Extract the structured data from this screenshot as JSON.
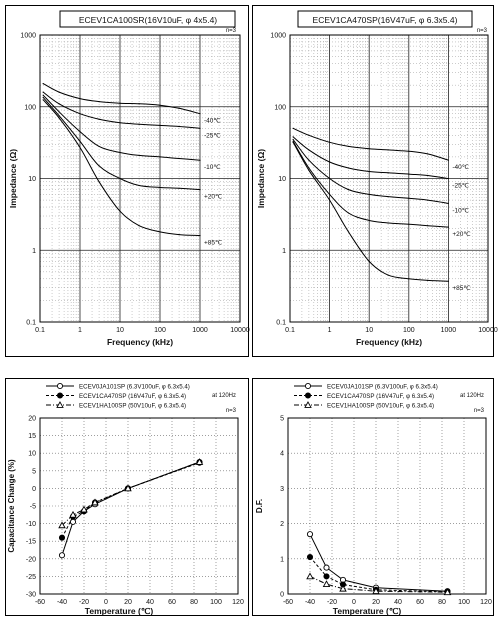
{
  "chart_data": [
    {
      "type": "line",
      "title": "ECEV1CA100SR(16V10uF, φ 4x5.4)",
      "annotation": "n=3",
      "xlabel": "Frequency (kHz)",
      "ylabel": "Impedance (Ω)",
      "xscale": "log",
      "yscale": "log",
      "xlim": [
        0.1,
        10000
      ],
      "ylim": [
        0.1,
        1000
      ],
      "xticks": [
        "0.1",
        "1",
        "10",
        "100",
        "1000",
        "10000"
      ],
      "yticks": [
        "0.1",
        "1",
        "10",
        "100",
        "1000"
      ],
      "grid": true,
      "x": [
        0.12,
        0.3,
        1,
        3,
        10,
        30,
        100,
        300,
        1000
      ],
      "series": [
        {
          "name": "-40℃",
          "values": [
            210,
            160,
            130,
            118,
            112,
            110,
            105,
            95,
            80
          ]
        },
        {
          "name": "-25℃",
          "values": [
            160,
            110,
            80,
            67,
            60,
            57,
            55,
            53,
            50
          ]
        },
        {
          "name": "-10℃",
          "values": [
            145,
            85,
            45,
            28,
            23,
            21,
            20,
            19,
            18
          ]
        },
        {
          "name": "+20℃",
          "values": [
            135,
            75,
            33,
            15,
            10,
            8,
            7.5,
            7.3,
            7
          ]
        },
        {
          "name": "+85℃",
          "values": [
            125,
            70,
            27,
            9,
            3.5,
            2.2,
            1.8,
            1.65,
            1.6
          ]
        }
      ]
    },
    {
      "type": "line",
      "title": "ECEV1CA470SP(16V47uF, φ 6.3x5.4)",
      "annotation": "n=3",
      "xlabel": "Frequency (kHz)",
      "ylabel": "Impedance (Ω)",
      "xscale": "log",
      "yscale": "log",
      "xlim": [
        0.1,
        10000
      ],
      "ylim": [
        0.1,
        1000
      ],
      "xticks": [
        "0.1",
        "1",
        "10",
        "100",
        "1000",
        "10000"
      ],
      "yticks": [
        "0.1",
        "1",
        "10",
        "100",
        "1000"
      ],
      "grid": true,
      "x": [
        0.12,
        0.3,
        1,
        3,
        10,
        30,
        100,
        300,
        1000
      ],
      "series": [
        {
          "name": "-40℃",
          "values": [
            50,
            40,
            32,
            28,
            26,
            25,
            24,
            22,
            18
          ]
        },
        {
          "name": "-25℃",
          "values": [
            38,
            25,
            17,
            14,
            12.5,
            12,
            11.5,
            11,
            10
          ]
        },
        {
          "name": "-10℃",
          "values": [
            35,
            18,
            10,
            7,
            6,
            5.6,
            5.3,
            5,
            4.5
          ]
        },
        {
          "name": "+20℃",
          "values": [
            33,
            14,
            6,
            3.3,
            2.6,
            2.4,
            2.3,
            2.2,
            2.1
          ]
        },
        {
          "name": "+85℃",
          "values": [
            32,
            13,
            5,
            1.8,
            0.7,
            0.45,
            0.4,
            0.38,
            0.37
          ]
        }
      ]
    },
    {
      "type": "line",
      "xlabel": "Temperature (℃)",
      "ylabel": "Capacitance Change (%)",
      "xlim": [
        -60,
        120
      ],
      "ylim": [
        -30,
        20
      ],
      "xticks": [
        -60,
        -40,
        -20,
        0,
        20,
        40,
        60,
        80,
        100,
        120
      ],
      "yticks": [
        -30,
        -25,
        -20,
        -15,
        -10,
        -5,
        0,
        5,
        10,
        15,
        20
      ],
      "grid": true,
      "annotations": [
        "at 120Hz",
        "n=3"
      ],
      "legend_placement": "top",
      "x": [
        -40,
        -30,
        -20,
        -10,
        20,
        85
      ],
      "series": [
        {
          "name": "ECEV0JA101SP (6.3V100uF, φ 6.3x5.4)",
          "marker": "open-circle",
          "line": "solid",
          "values": [
            -19,
            -9.5,
            -6.5,
            -4.5,
            0,
            7.5
          ]
        },
        {
          "name": "ECEV1CA470SP (16V47uF, φ 6.3x5.4)",
          "marker": "filled-circle",
          "line": "dashed",
          "values": [
            -14,
            -8,
            -6.5,
            -4,
            0,
            7.3
          ]
        },
        {
          "name": "ECEV1HA100SP (50V10uF, φ 6.3x5.4)",
          "marker": "open-triangle",
          "line": "dash-dot",
          "values": [
            -10.5,
            -7.5,
            -6,
            -4,
            0,
            7.5
          ]
        }
      ]
    },
    {
      "type": "line",
      "xlabel": "Temperature (℃)",
      "ylabel": "D.F.",
      "xlim": [
        -60,
        120
      ],
      "ylim": [
        0,
        5
      ],
      "xticks": [
        -60,
        -40,
        -20,
        0,
        20,
        40,
        60,
        80,
        100,
        120
      ],
      "yticks": [
        0,
        1,
        2,
        3,
        4,
        5
      ],
      "grid": true,
      "annotations": [
        "at 120Hz",
        "n=3"
      ],
      "legend_placement": "top",
      "x": [
        -40,
        -25,
        -10,
        20,
        85
      ],
      "series": [
        {
          "name": "ECEV0JA101SP (6.3V100uF, φ 6.3x5.4)",
          "marker": "open-circle",
          "line": "solid",
          "values": [
            1.7,
            0.75,
            0.4,
            0.18,
            0.08
          ]
        },
        {
          "name": "ECEV1CA470SP (16V47uF, φ 6.3x5.4)",
          "marker": "filled-circle",
          "line": "dashed",
          "values": [
            1.05,
            0.5,
            0.27,
            0.12,
            0.06
          ]
        },
        {
          "name": "ECEV1HA100SP (50V10uF, φ 6.3x5.4)",
          "marker": "open-triangle",
          "line": "dash-dot",
          "values": [
            0.5,
            0.28,
            0.15,
            0.08,
            0.05
          ]
        }
      ]
    }
  ]
}
